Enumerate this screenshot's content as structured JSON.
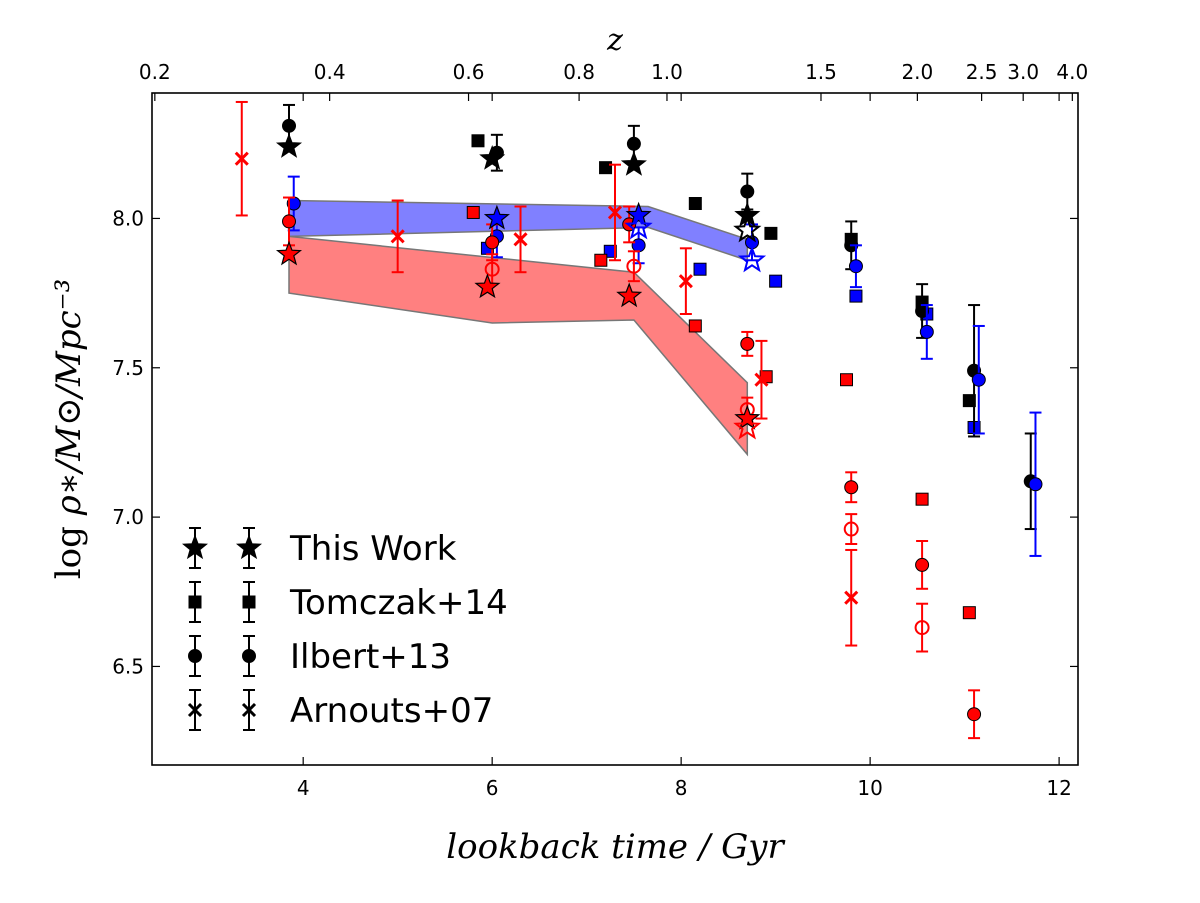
{
  "chart_data": {
    "type": "scatter",
    "xlabel": "lookback time / Gyr",
    "ylabel_prefix": "log ",
    "ylabel_math": "ρ∗/M⊙/Mpc⁻³",
    "top_axis_label": "z",
    "xlim": [
      2.4,
      12.2
    ],
    "ylim": [
      6.17,
      8.42
    ],
    "grid": false,
    "x_ticks": [
      "4",
      "6",
      "8",
      "10",
      "12"
    ],
    "y_ticks": [
      "6.5",
      "7.0",
      "7.5",
      "8.0"
    ],
    "z_ticks": [
      {
        "label": "0.2",
        "t": 2.43
      },
      {
        "label": "0.4",
        "t": 4.28
      },
      {
        "label": "0.6",
        "t": 5.75
      },
      {
        "label": "0.8",
        "t": 6.92
      },
      {
        "label": "1.0",
        "t": 7.85
      },
      {
        "label": "1.5",
        "t": 9.48
      },
      {
        "label": "2.0",
        "t": 10.5
      },
      {
        "label": "2.5",
        "t": 11.18
      },
      {
        "label": "3.0",
        "t": 11.62
      },
      {
        "label": "4.0",
        "t": 12.14
      }
    ],
    "colors": {
      "total": "#000000",
      "starforming": "#0000ff",
      "quiescent": "#ff0000"
    },
    "bands": [
      {
        "name": "starforming-band",
        "color": "#8080ff",
        "upper": [
          [
            3.85,
            8.06
          ],
          [
            7.65,
            8.04
          ],
          [
            8.7,
            7.93
          ]
        ],
        "lower": [
          [
            3.85,
            7.94
          ],
          [
            7.65,
            7.97
          ],
          [
            8.7,
            7.86
          ]
        ]
      },
      {
        "name": "quiescent-band",
        "color": "#ff8080",
        "upper": [
          [
            3.85,
            7.94
          ],
          [
            7.5,
            7.82
          ],
          [
            8.7,
            7.45
          ]
        ],
        "lower": [
          [
            3.85,
            7.75
          ],
          [
            6.0,
            7.65
          ],
          [
            7.5,
            7.66
          ],
          [
            8.7,
            7.21
          ]
        ]
      }
    ],
    "series": [
      {
        "name": "This Work",
        "label": "This Work",
        "marker": "star",
        "points": [
          {
            "x": 3.85,
            "y": 8.24,
            "c": "total"
          },
          {
            "x": 6.0,
            "y": 8.2,
            "c": "total"
          },
          {
            "x": 7.5,
            "y": 8.18,
            "c": "total"
          },
          {
            "x": 8.7,
            "y": 8.01,
            "c": "total"
          },
          {
            "x": 8.7,
            "y": 7.96,
            "c": "total",
            "open": true
          },
          {
            "x": 6.05,
            "y": 8.0,
            "c": "starforming"
          },
          {
            "x": 7.55,
            "y": 8.01,
            "c": "starforming"
          },
          {
            "x": 7.55,
            "y": 7.97,
            "c": "starforming",
            "open": true
          },
          {
            "x": 8.75,
            "y": 7.86,
            "c": "starforming",
            "open": true
          },
          {
            "x": 3.85,
            "y": 7.88,
            "c": "quiescent"
          },
          {
            "x": 5.95,
            "y": 7.77,
            "c": "quiescent"
          },
          {
            "x": 7.45,
            "y": 7.74,
            "c": "quiescent"
          },
          {
            "x": 8.7,
            "y": 7.33,
            "c": "quiescent"
          },
          {
            "x": 8.7,
            "y": 7.3,
            "c": "quiescent",
            "open": true
          }
        ]
      },
      {
        "name": "Tomczak+14",
        "label": "Tomczak+14",
        "marker": "square",
        "points": [
          {
            "x": 5.85,
            "y": 8.26,
            "c": "total"
          },
          {
            "x": 7.2,
            "y": 8.17,
            "c": "total"
          },
          {
            "x": 8.15,
            "y": 8.05,
            "c": "total"
          },
          {
            "x": 8.95,
            "y": 7.95,
            "c": "total"
          },
          {
            "x": 9.8,
            "y": 7.93,
            "c": "total"
          },
          {
            "x": 10.55,
            "y": 7.72,
            "c": "total"
          },
          {
            "x": 11.05,
            "y": 7.39,
            "c": "total"
          },
          {
            "x": 5.95,
            "y": 7.9,
            "c": "starforming"
          },
          {
            "x": 7.25,
            "y": 7.89,
            "c": "starforming"
          },
          {
            "x": 8.2,
            "y": 7.83,
            "c": "starforming"
          },
          {
            "x": 9.0,
            "y": 7.79,
            "c": "starforming"
          },
          {
            "x": 9.85,
            "y": 7.74,
            "c": "starforming"
          },
          {
            "x": 10.6,
            "y": 7.68,
            "c": "starforming"
          },
          {
            "x": 11.1,
            "y": 7.3,
            "c": "starforming"
          },
          {
            "x": 5.8,
            "y": 8.02,
            "c": "quiescent"
          },
          {
            "x": 7.15,
            "y": 7.86,
            "c": "quiescent"
          },
          {
            "x": 8.15,
            "y": 7.64,
            "c": "quiescent"
          },
          {
            "x": 8.9,
            "y": 7.47,
            "c": "quiescent"
          },
          {
            "x": 9.75,
            "y": 7.46,
            "c": "quiescent"
          },
          {
            "x": 10.55,
            "y": 7.06,
            "c": "quiescent"
          },
          {
            "x": 11.05,
            "y": 6.68,
            "c": "quiescent"
          }
        ]
      },
      {
        "name": "Ilbert+13",
        "label": "Ilbert+13",
        "marker": "circle",
        "points": [
          {
            "x": 3.85,
            "y": 8.31,
            "c": "total",
            "err": 0.07
          },
          {
            "x": 6.05,
            "y": 8.22,
            "c": "total",
            "err": 0.06
          },
          {
            "x": 7.5,
            "y": 8.25,
            "c": "total",
            "err": 0.06
          },
          {
            "x": 8.7,
            "y": 8.09,
            "c": "total",
            "err": 0.06
          },
          {
            "x": 9.8,
            "y": 7.91,
            "c": "total",
            "err": 0.08
          },
          {
            "x": 10.55,
            "y": 7.69,
            "c": "total",
            "err": 0.09
          },
          {
            "x": 11.1,
            "y": 7.49,
            "c": "total",
            "err": 0.22
          },
          {
            "x": 11.7,
            "y": 7.12,
            "c": "total",
            "err": 0.16
          },
          {
            "x": 3.9,
            "y": 8.05,
            "c": "starforming",
            "err": 0.09
          },
          {
            "x": 6.05,
            "y": 7.94,
            "c": "starforming",
            "err": 0.07
          },
          {
            "x": 7.55,
            "y": 7.91,
            "c": "starforming",
            "err": 0.06
          },
          {
            "x": 8.75,
            "y": 7.92,
            "c": "starforming",
            "err": 0.06
          },
          {
            "x": 9.85,
            "y": 7.84,
            "c": "starforming",
            "err": 0.07
          },
          {
            "x": 10.6,
            "y": 7.62,
            "c": "starforming",
            "err": 0.09
          },
          {
            "x": 11.15,
            "y": 7.46,
            "c": "starforming",
            "err": 0.18
          },
          {
            "x": 11.75,
            "y": 7.11,
            "c": "starforming",
            "err": 0.24
          },
          {
            "x": 3.85,
            "y": 7.99,
            "c": "quiescent",
            "err": 0.08
          },
          {
            "x": 6.0,
            "y": 7.92,
            "c": "quiescent",
            "err": 0.06
          },
          {
            "x": 7.45,
            "y": 7.98,
            "c": "quiescent",
            "err": 0.06
          },
          {
            "x": 8.7,
            "y": 7.58,
            "c": "quiescent",
            "err": 0.04
          },
          {
            "x": 9.8,
            "y": 7.1,
            "c": "quiescent",
            "err": 0.05
          },
          {
            "x": 10.55,
            "y": 6.84,
            "c": "quiescent",
            "err": 0.08
          },
          {
            "x": 11.1,
            "y": 6.34,
            "c": "quiescent",
            "err": 0.08
          },
          {
            "x": 6.0,
            "y": 7.83,
            "c": "quiescent",
            "err": 0.05,
            "open": true
          },
          {
            "x": 7.5,
            "y": 7.84,
            "c": "quiescent",
            "err": 0.05,
            "open": true
          },
          {
            "x": 8.7,
            "y": 7.36,
            "c": "quiescent",
            "err": 0.04,
            "open": true
          },
          {
            "x": 9.8,
            "y": 6.96,
            "c": "quiescent",
            "err": 0.05,
            "open": true
          },
          {
            "x": 10.55,
            "y": 6.63,
            "c": "quiescent",
            "err": 0.08,
            "open": true
          }
        ]
      },
      {
        "name": "Arnouts+07",
        "label": "Arnouts+07",
        "marker": "x",
        "points": [
          {
            "x": 3.35,
            "y": 8.2,
            "c": "quiescent",
            "err": 0.19
          },
          {
            "x": 5.0,
            "y": 7.94,
            "c": "quiescent",
            "err": 0.12
          },
          {
            "x": 6.3,
            "y": 7.93,
            "c": "quiescent",
            "err": 0.11
          },
          {
            "x": 7.3,
            "y": 8.02,
            "c": "quiescent",
            "err": 0.16
          },
          {
            "x": 8.05,
            "y": 7.79,
            "c": "quiescent",
            "err": 0.11
          },
          {
            "x": 8.85,
            "y": 7.46,
            "c": "quiescent",
            "err": 0.13
          },
          {
            "x": 9.8,
            "y": 6.73,
            "c": "quiescent",
            "err": 0.16
          }
        ]
      }
    ]
  }
}
